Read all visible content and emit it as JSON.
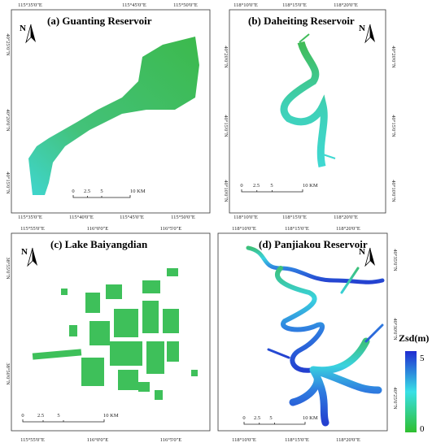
{
  "panels": [
    {
      "title": "(a) Guanting Reservoir",
      "north": "N",
      "top": [
        "115°35'0\"E",
        "115°45'0\"E",
        "115°50'0\"E"
      ],
      "bottom": [
        "115°35'0\"E",
        "115°40'0\"E",
        "115°45'0\"E",
        "115°50'0\"E"
      ],
      "left": [
        "40°25'0\"N",
        "40°20'0\"N",
        "40°15'0\"N"
      ],
      "right": [],
      "scale": [
        "0",
        "2.5",
        "5",
        "10 KM"
      ]
    },
    {
      "title": "(b) Daheiting Reservoir",
      "north": "N",
      "top": [
        "118°10'0\"E",
        "118°15'0\"E",
        "118°20'0\"E"
      ],
      "bottom": [
        "118°10'0\"E",
        "118°15'0\"E",
        "118°20'0\"E"
      ],
      "left": [
        "40°20'0\"N",
        "40°15'0\"N",
        "40°10'0\"N"
      ],
      "right": [
        "40°20'0\"N",
        "40°15'0\"N",
        "40°10'0\"N"
      ],
      "scale": [
        "0",
        "2.5",
        "5",
        "10 KM"
      ]
    },
    {
      "title": "(c) Lake Baiyangdian",
      "north": "N",
      "top": [
        "115°55'0\"E",
        "116°0'0\"E",
        "116°5'0\"E"
      ],
      "bottom": [
        "115°55'0\"E",
        "116°0'0\"E",
        "116°5'0\"E"
      ],
      "left": [
        "38°55'0\"N",
        "38°50'0\"N"
      ],
      "right": [],
      "scale": [
        "0",
        "2.5",
        "5",
        "10 KM"
      ]
    },
    {
      "title": "(d) Panjiakou Reservoir",
      "north": "N",
      "top": [
        "118°10'0\"E",
        "118°15'0\"E",
        "118°20'0\"E"
      ],
      "bottom": [
        "118°10'0\"E",
        "118°15'0\"E",
        "118°20'0\"E"
      ],
      "left": [],
      "right": [
        "40°35'0\"N",
        "40°30'0\"N",
        "40°25'0\"N"
      ],
      "scale": [
        "0",
        "2.5",
        "5",
        "10 KM"
      ]
    }
  ],
  "legend": {
    "title": "Zsd(m)",
    "max": "5",
    "min": "0"
  }
}
